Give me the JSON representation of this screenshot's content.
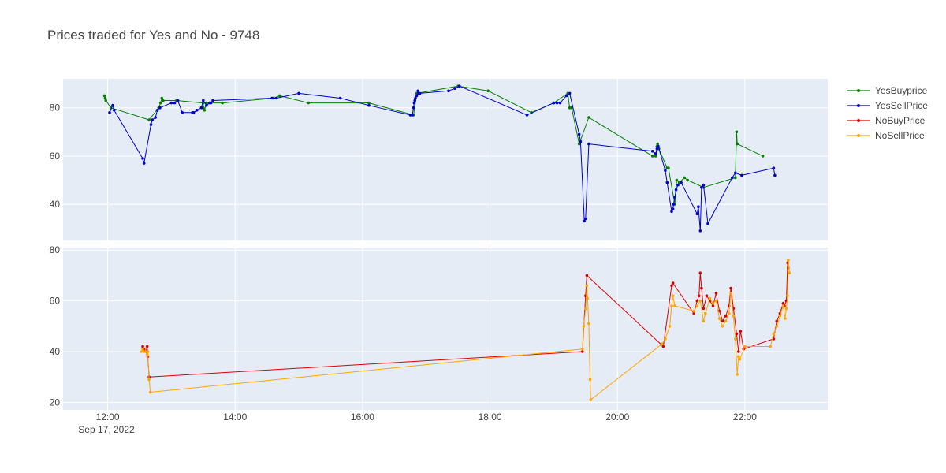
{
  "chart_data": {
    "type": "line",
    "title": "Prices traded for Yes and No - 9748",
    "x_tick_labels": [
      "12:00",
      "14:00",
      "16:00",
      "18:00",
      "20:00",
      "22:00"
    ],
    "x_date_label": "Sep 17, 2022",
    "x_range_hours": [
      11.3,
      23.3
    ],
    "grid": true,
    "legend_placement": "top-right",
    "subplots": [
      {
        "name": "top",
        "ylim": [
          25,
          92
        ],
        "y_ticks": [
          40,
          60,
          80
        ],
        "series": [
          {
            "name": "YesBuyprice",
            "color": "#008000",
            "points": [
              [
                11.95,
                85
              ],
              [
                11.96,
                84
              ],
              [
                11.97,
                83
              ],
              [
                12.05,
                80
              ],
              [
                12.65,
                75
              ],
              [
                12.8,
                80
              ],
              [
                12.83,
                82
              ],
              [
                12.85,
                84
              ],
              [
                12.87,
                83
              ],
              [
                13.08,
                83
              ],
              [
                13.5,
                82
              ],
              [
                13.5,
                80
              ],
              [
                13.52,
                79
              ],
              [
                13.55,
                82
              ],
              [
                13.8,
                82
              ],
              [
                14.6,
                84
              ],
              [
                14.7,
                85
              ],
              [
                15.15,
                82
              ],
              [
                16.1,
                82
              ],
              [
                16.8,
                77
              ],
              [
                16.85,
                86
              ],
              [
                17.5,
                89
              ],
              [
                17.97,
                87
              ],
              [
                18.65,
                78
              ],
              [
                19.0,
                82
              ],
              [
                19.22,
                86
              ],
              [
                19.25,
                80
              ],
              [
                19.28,
                80
              ],
              [
                19.4,
                65
              ],
              [
                19.55,
                76
              ],
              [
                20.55,
                60
              ],
              [
                20.6,
                60
              ],
              [
                20.62,
                64
              ],
              [
                20.63,
                65
              ],
              [
                20.65,
                63
              ],
              [
                20.78,
                55
              ],
              [
                20.8,
                55
              ],
              [
                20.9,
                40
              ],
              [
                20.93,
                50
              ],
              [
                20.97,
                49
              ],
              [
                21.05,
                51
              ],
              [
                21.1,
                50
              ],
              [
                21.35,
                47
              ],
              [
                21.85,
                51
              ],
              [
                21.87,
                70
              ],
              [
                21.88,
                65
              ],
              [
                22.28,
                60
              ]
            ]
          },
          {
            "name": "YesSellPrice",
            "color": "#0000cd",
            "points": [
              [
                12.03,
                78
              ],
              [
                12.08,
                81
              ],
              [
                12.1,
                79
              ],
              [
                12.55,
                59
              ],
              [
                12.57,
                57
              ],
              [
                12.68,
                73
              ],
              [
                12.7,
                75
              ],
              [
                12.75,
                76
              ],
              [
                12.78,
                79
              ],
              [
                12.82,
                80
              ],
              [
                13.0,
                82
              ],
              [
                13.05,
                82
              ],
              [
                13.1,
                83
              ],
              [
                13.17,
                78
              ],
              [
                13.33,
                78
              ],
              [
                13.35,
                78
              ],
              [
                13.4,
                79
              ],
              [
                13.47,
                80
              ],
              [
                13.5,
                83
              ],
              [
                13.55,
                81
              ],
              [
                13.6,
                82
              ],
              [
                13.62,
                82
              ],
              [
                13.65,
                83
              ],
              [
                14.58,
                84
              ],
              [
                14.65,
                84
              ],
              [
                15.0,
                86
              ],
              [
                15.65,
                84
              ],
              [
                16.1,
                81
              ],
              [
                16.75,
                77
              ],
              [
                16.78,
                77
              ],
              [
                16.8,
                80
              ],
              [
                16.81,
                82
              ],
              [
                16.82,
                83
              ],
              [
                16.83,
                84
              ],
              [
                16.85,
                85
              ],
              [
                16.87,
                87
              ],
              [
                16.88,
                86
              ],
              [
                16.9,
                86
              ],
              [
                17.35,
                87
              ],
              [
                17.45,
                88
              ],
              [
                17.52,
                89
              ],
              [
                18.58,
                77
              ],
              [
                19.0,
                82
              ],
              [
                19.05,
                82
              ],
              [
                19.1,
                82
              ],
              [
                19.2,
                85
              ],
              [
                19.25,
                86
              ],
              [
                19.4,
                69
              ],
              [
                19.42,
                66
              ],
              [
                19.48,
                33
              ],
              [
                19.5,
                34
              ],
              [
                19.55,
                65
              ],
              [
                20.55,
                62
              ],
              [
                20.6,
                61
              ],
              [
                20.62,
                63
              ],
              [
                20.64,
                64
              ],
              [
                20.75,
                54
              ],
              [
                20.78,
                49
              ],
              [
                20.85,
                37
              ],
              [
                20.87,
                38
              ],
              [
                20.88,
                40
              ],
              [
                20.9,
                43
              ],
              [
                20.92,
                46
              ],
              [
                20.95,
                48
              ],
              [
                21.0,
                49
              ],
              [
                21.25,
                36
              ],
              [
                21.27,
                39
              ],
              [
                21.3,
                29
              ],
              [
                21.32,
                47
              ],
              [
                21.35,
                48
              ],
              [
                21.42,
                32
              ],
              [
                21.8,
                51
              ],
              [
                21.85,
                53
              ],
              [
                21.95,
                52
              ],
              [
                22.45,
                55
              ],
              [
                22.47,
                52
              ]
            ]
          }
        ]
      },
      {
        "name": "bottom",
        "ylim": [
          17,
          81
        ],
        "y_ticks": [
          20,
          40,
          60,
          80
        ],
        "series": [
          {
            "name": "NoBuyPrice",
            "color": "#dc0000",
            "points": [
              [
                12.55,
                42
              ],
              [
                12.57,
                41
              ],
              [
                12.6,
                40
              ],
              [
                12.62,
                42
              ],
              [
                12.63,
                38
              ],
              [
                12.65,
                30
              ],
              [
                19.45,
                40
              ],
              [
                19.5,
                62
              ],
              [
                19.52,
                70
              ],
              [
                20.72,
                42
              ],
              [
                20.85,
                66
              ],
              [
                20.87,
                67
              ],
              [
                21.2,
                55
              ],
              [
                21.25,
                60
              ],
              [
                21.28,
                62
              ],
              [
                21.3,
                71
              ],
              [
                21.32,
                65
              ],
              [
                21.35,
                57
              ],
              [
                21.4,
                62
              ],
              [
                21.45,
                60
              ],
              [
                21.5,
                58
              ],
              [
                21.55,
                63
              ],
              [
                21.6,
                56
              ],
              [
                21.65,
                52
              ],
              [
                21.7,
                54
              ],
              [
                21.75,
                58
              ],
              [
                21.78,
                65
              ],
              [
                21.82,
                57
              ],
              [
                21.87,
                47
              ],
              [
                21.9,
                40
              ],
              [
                21.93,
                48
              ],
              [
                21.98,
                41
              ],
              [
                22.45,
                45
              ],
              [
                22.5,
                52
              ],
              [
                22.55,
                55
              ],
              [
                22.6,
                59
              ],
              [
                22.62,
                58
              ],
              [
                22.65,
                60
              ],
              [
                22.67,
                75
              ],
              [
                22.68,
                73
              ]
            ]
          },
          {
            "name": "NoSellPrice",
            "color": "#ffa500",
            "points": [
              [
                12.53,
                40
              ],
              [
                12.55,
                41
              ],
              [
                12.57,
                40
              ],
              [
                12.6,
                40
              ],
              [
                12.62,
                39
              ],
              [
                12.63,
                40
              ],
              [
                12.65,
                29
              ],
              [
                12.67,
                24
              ],
              [
                19.45,
                41
              ],
              [
                19.47,
                50
              ],
              [
                19.5,
                57
              ],
              [
                19.52,
                66
              ],
              [
                19.53,
                61
              ],
              [
                19.55,
                51
              ],
              [
                19.57,
                29
              ],
              [
                19.58,
                21
              ],
              [
                20.7,
                43
              ],
              [
                20.75,
                45
              ],
              [
                20.82,
                50
              ],
              [
                20.85,
                58
              ],
              [
                20.87,
                62
              ],
              [
                20.9,
                58
              ],
              [
                21.2,
                56
              ],
              [
                21.25,
                58
              ],
              [
                21.3,
                60
              ],
              [
                21.35,
                52
              ],
              [
                21.38,
                55
              ],
              [
                21.45,
                61
              ],
              [
                21.5,
                59
              ],
              [
                21.55,
                60
              ],
              [
                21.6,
                53
              ],
              [
                21.65,
                50
              ],
              [
                21.7,
                52
              ],
              [
                21.75,
                55
              ],
              [
                21.78,
                63
              ],
              [
                21.82,
                54
              ],
              [
                21.85,
                45
              ],
              [
                21.88,
                31
              ],
              [
                21.9,
                38
              ],
              [
                21.92,
                37
              ],
              [
                22.0,
                42
              ],
              [
                22.4,
                42
              ],
              [
                22.45,
                47
              ],
              [
                22.5,
                50
              ],
              [
                22.55,
                54
              ],
              [
                22.6,
                58
              ],
              [
                22.63,
                53
              ],
              [
                22.65,
                57
              ],
              [
                22.67,
                62
              ],
              [
                22.68,
                76
              ],
              [
                22.7,
                71
              ]
            ]
          }
        ]
      }
    ]
  }
}
